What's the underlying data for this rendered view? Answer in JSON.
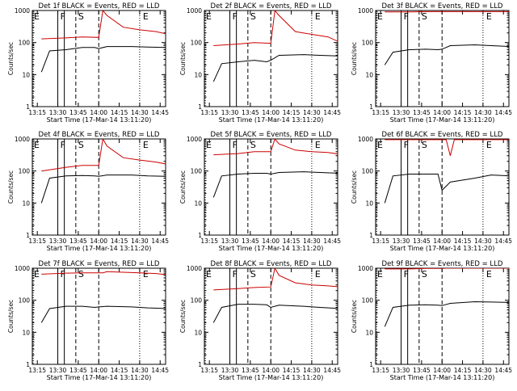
{
  "figure": {
    "xlabel": "Start Time (17-Mar-14 13:11:20)",
    "ylabel": "Counts/sec",
    "x_ticks": [
      "13:15",
      "13:30",
      "13:45",
      "14:00",
      "14:15",
      "14:30",
      "14:45"
    ],
    "y_ticks": [
      "1",
      "10",
      "100",
      "1000"
    ],
    "marker_labels": {
      "F": "F",
      "S": "S",
      "E": "E"
    }
  },
  "colors": {
    "events": "#000000",
    "lld": "#cc0000",
    "axes": "#000000",
    "background": "#ffffff"
  },
  "chart_data": [
    {
      "type": "line",
      "title": "Det 1f BLACK = Events, RED = LLD",
      "xlabel": "Start Time (17-Mar-14 13:11:20)",
      "ylabel": "Counts/sec",
      "xlim": [
        "13:11:20",
        "14:49:00"
      ],
      "ylim": [
        1,
        1000
      ],
      "yscale": "log",
      "series": [
        {
          "name": "Events",
          "color": "#000000",
          "values": [
            [
              13.3,
              12
            ],
            [
              13.4,
              55
            ],
            [
              13.6,
              60
            ],
            [
              13.8,
              70
            ],
            [
              13.95,
              70
            ],
            [
              14.0,
              65
            ],
            [
              14.1,
              75
            ],
            [
              14.4,
              75
            ],
            [
              14.6,
              72
            ],
            [
              14.85,
              70
            ]
          ]
        },
        {
          "name": "LLD",
          "color": "#cc0000",
          "values": [
            [
              13.3,
              130
            ],
            [
              13.6,
              140
            ],
            [
              13.8,
              150
            ],
            [
              14.0,
              145
            ],
            [
              14.05,
              1000
            ],
            [
              14.1,
              700
            ],
            [
              14.3,
              300
            ],
            [
              14.5,
              250
            ],
            [
              14.7,
              220
            ],
            [
              14.85,
              180
            ]
          ]
        }
      ]
    },
    {
      "type": "line",
      "title": "Det 2f BLACK = Events, RED = LLD",
      "xlabel": "Start Time (17-Mar-14 13:11:20)",
      "ylabel": "Counts/sec",
      "xlim": [
        "13:11:20",
        "14:49:00"
      ],
      "ylim": [
        1,
        1000
      ],
      "yscale": "log",
      "series": [
        {
          "name": "Events",
          "color": "#000000",
          "values": [
            [
              13.3,
              6
            ],
            [
              13.4,
              22
            ],
            [
              13.6,
              25
            ],
            [
              13.8,
              28
            ],
            [
              13.95,
              25
            ],
            [
              14.0,
              28
            ],
            [
              14.1,
              40
            ],
            [
              14.4,
              42
            ],
            [
              14.6,
              40
            ],
            [
              14.85,
              38
            ]
          ]
        },
        {
          "name": "LLD",
          "color": "#cc0000",
          "values": [
            [
              13.3,
              80
            ],
            [
              13.6,
              90
            ],
            [
              13.8,
              100
            ],
            [
              14.0,
              95
            ],
            [
              14.05,
              1000
            ],
            [
              14.1,
              700
            ],
            [
              14.3,
              220
            ],
            [
              14.5,
              180
            ],
            [
              14.7,
              150
            ],
            [
              14.85,
              100
            ]
          ]
        }
      ]
    },
    {
      "type": "line",
      "title": "Det 3f BLACK = Events, RED = LLD",
      "xlabel": "Start Time (17-Mar-14 13:11:20)",
      "ylabel": "Counts/sec",
      "xlim": [
        "13:11:20",
        "14:49:00"
      ],
      "ylim": [
        1,
        1000
      ],
      "yscale": "log",
      "series": [
        {
          "name": "Events",
          "color": "#000000",
          "values": [
            [
              13.3,
              20
            ],
            [
              13.4,
              50
            ],
            [
              13.6,
              60
            ],
            [
              13.8,
              62
            ],
            [
              13.95,
              60
            ],
            [
              14.0,
              62
            ],
            [
              14.1,
              80
            ],
            [
              14.4,
              85
            ],
            [
              14.6,
              80
            ],
            [
              14.85,
              75
            ]
          ]
        },
        {
          "name": "LLD",
          "color": "#cc0000",
          "values": [
            [
              13.3,
              900
            ],
            [
              13.6,
              900
            ],
            [
              13.8,
              920
            ],
            [
              14.0,
              920
            ],
            [
              14.05,
              920
            ],
            [
              14.1,
              920
            ],
            [
              14.3,
              920
            ],
            [
              14.5,
              920
            ],
            [
              14.7,
              920
            ],
            [
              14.85,
              920
            ]
          ]
        }
      ]
    },
    {
      "type": "line",
      "title": "Det 4f BLACK = Events, RED = LLD",
      "xlabel": "Start Time (17-Mar-14 13:11:20)",
      "ylabel": "Counts/sec",
      "xlim": [
        "13:11:20",
        "14:49:00"
      ],
      "ylim": [
        1,
        1000
      ],
      "yscale": "log",
      "series": [
        {
          "name": "Events",
          "color": "#000000",
          "values": [
            [
              13.3,
              10
            ],
            [
              13.4,
              60
            ],
            [
              13.6,
              70
            ],
            [
              13.8,
              72
            ],
            [
              13.95,
              70
            ],
            [
              14.0,
              68
            ],
            [
              14.1,
              75
            ],
            [
              14.4,
              75
            ],
            [
              14.6,
              70
            ],
            [
              14.85,
              68
            ]
          ]
        },
        {
          "name": "LLD",
          "color": "#cc0000",
          "values": [
            [
              13.3,
              100
            ],
            [
              13.6,
              130
            ],
            [
              13.8,
              150
            ],
            [
              14.0,
              150
            ],
            [
              14.05,
              1000
            ],
            [
              14.1,
              600
            ],
            [
              14.3,
              260
            ],
            [
              14.5,
              220
            ],
            [
              14.7,
              190
            ],
            [
              14.85,
              160
            ]
          ]
        }
      ]
    },
    {
      "type": "line",
      "title": "Det 5f BLACK = Events, RED = LLD",
      "xlabel": "Start Time (17-Mar-14 13:11:20)",
      "ylabel": "Counts/sec",
      "xlim": [
        "13:11:20",
        "14:49:00"
      ],
      "ylim": [
        1,
        1000
      ],
      "yscale": "log",
      "series": [
        {
          "name": "Events",
          "color": "#000000",
          "values": [
            [
              13.3,
              15
            ],
            [
              13.4,
              70
            ],
            [
              13.6,
              80
            ],
            [
              13.8,
              85
            ],
            [
              13.95,
              85
            ],
            [
              14.0,
              80
            ],
            [
              14.1,
              90
            ],
            [
              14.4,
              95
            ],
            [
              14.6,
              90
            ],
            [
              14.85,
              85
            ]
          ]
        },
        {
          "name": "LLD",
          "color": "#cc0000",
          "values": [
            [
              13.3,
              320
            ],
            [
              13.6,
              350
            ],
            [
              13.8,
              400
            ],
            [
              14.0,
              400
            ],
            [
              14.05,
              1000
            ],
            [
              14.1,
              700
            ],
            [
              14.3,
              450
            ],
            [
              14.5,
              400
            ],
            [
              14.7,
              380
            ],
            [
              14.85,
              330
            ]
          ]
        }
      ]
    },
    {
      "type": "line",
      "title": "Det 6f BLACK = Events, RED = LLD",
      "xlabel": "Start Time (17-Mar-14 13:11:20)",
      "ylabel": "Counts/sec",
      "xlim": [
        "13:11:20",
        "14:49:00"
      ],
      "ylim": [
        1,
        1000
      ],
      "yscale": "log",
      "series": [
        {
          "name": "Events",
          "color": "#000000",
          "values": [
            [
              13.3,
              10
            ],
            [
              13.4,
              70
            ],
            [
              13.6,
              80
            ],
            [
              13.8,
              80
            ],
            [
              13.95,
              80
            ],
            [
              14.0,
              25
            ],
            [
              14.1,
              45
            ],
            [
              14.4,
              60
            ],
            [
              14.6,
              75
            ],
            [
              14.85,
              70
            ]
          ]
        },
        {
          "name": "LLD",
          "color": "#cc0000",
          "values": [
            [
              13.3,
              950
            ],
            [
              13.6,
              950
            ],
            [
              13.8,
              950
            ],
            [
              14.0,
              950
            ],
            [
              14.05,
              950
            ],
            [
              14.1,
              300
            ],
            [
              14.15,
              950
            ],
            [
              14.5,
              950
            ],
            [
              14.7,
              950
            ],
            [
              14.85,
              950
            ]
          ]
        }
      ]
    },
    {
      "type": "line",
      "title": "Det 7f BLACK = Events, RED = LLD",
      "xlabel": "Start Time (17-Mar-14 13:11:20)",
      "ylabel": "Counts/sec",
      "xlim": [
        "13:11:20",
        "14:49:00"
      ],
      "ylim": [
        1,
        1000
      ],
      "yscale": "log",
      "series": [
        {
          "name": "Events",
          "color": "#000000",
          "values": [
            [
              13.3,
              20
            ],
            [
              13.4,
              55
            ],
            [
              13.6,
              65
            ],
            [
              13.8,
              65
            ],
            [
              13.95,
              60
            ],
            [
              14.0,
              62
            ],
            [
              14.1,
              65
            ],
            [
              14.4,
              62
            ],
            [
              14.6,
              58
            ],
            [
              14.85,
              55
            ]
          ]
        },
        {
          "name": "LLD",
          "color": "#cc0000",
          "values": [
            [
              13.3,
              650
            ],
            [
              13.6,
              700
            ],
            [
              13.8,
              720
            ],
            [
              14.0,
              720
            ],
            [
              14.05,
              720
            ],
            [
              14.1,
              780
            ],
            [
              14.3,
              750
            ],
            [
              14.5,
              720
            ],
            [
              14.7,
              680
            ],
            [
              14.85,
              620
            ]
          ]
        }
      ]
    },
    {
      "type": "line",
      "title": "Det 8f BLACK = Events, RED = LLD",
      "xlabel": "Start Time (17-Mar-14 13:11:20)",
      "ylabel": "Counts/sec",
      "xlim": [
        "13:11:20",
        "14:49:00"
      ],
      "ylim": [
        1,
        1000
      ],
      "yscale": "log",
      "series": [
        {
          "name": "Events",
          "color": "#000000",
          "values": [
            [
              13.3,
              20
            ],
            [
              13.4,
              60
            ],
            [
              13.6,
              75
            ],
            [
              13.8,
              75
            ],
            [
              13.95,
              72
            ],
            [
              14.0,
              60
            ],
            [
              14.1,
              70
            ],
            [
              14.4,
              65
            ],
            [
              14.6,
              60
            ],
            [
              14.85,
              55
            ]
          ]
        },
        {
          "name": "LLD",
          "color": "#cc0000",
          "values": [
            [
              13.3,
              210
            ],
            [
              13.6,
              230
            ],
            [
              13.8,
              250
            ],
            [
              14.0,
              260
            ],
            [
              14.05,
              1000
            ],
            [
              14.1,
              600
            ],
            [
              14.3,
              350
            ],
            [
              14.5,
              300
            ],
            [
              14.7,
              280
            ],
            [
              14.85,
              260
            ]
          ]
        }
      ]
    },
    {
      "type": "line",
      "title": "Det 9f BLACK = Events, RED = LLD",
      "xlabel": "Start Time (17-Mar-14 13:11:20)",
      "ylabel": "Counts/sec",
      "xlim": [
        "13:11:20",
        "14:49:00"
      ],
      "ylim": [
        1,
        1000
      ],
      "yscale": "log",
      "series": [
        {
          "name": "Events",
          "color": "#000000",
          "values": [
            [
              13.3,
              15
            ],
            [
              13.4,
              60
            ],
            [
              13.6,
              70
            ],
            [
              13.8,
              72
            ],
            [
              13.95,
              70
            ],
            [
              14.0,
              68
            ],
            [
              14.1,
              80
            ],
            [
              14.4,
              90
            ],
            [
              14.6,
              88
            ],
            [
              14.85,
              85
            ]
          ]
        },
        {
          "name": "LLD",
          "color": "#cc0000",
          "values": [
            [
              13.3,
              950
            ],
            [
              13.6,
              950
            ],
            [
              13.8,
              980
            ],
            [
              14.0,
              990
            ],
            [
              14.05,
              1000
            ],
            [
              14.1,
              1000
            ],
            [
              14.3,
              1000
            ],
            [
              14.5,
              1000
            ],
            [
              14.7,
              1000
            ],
            [
              14.85,
              1000
            ]
          ]
        }
      ]
    }
  ]
}
